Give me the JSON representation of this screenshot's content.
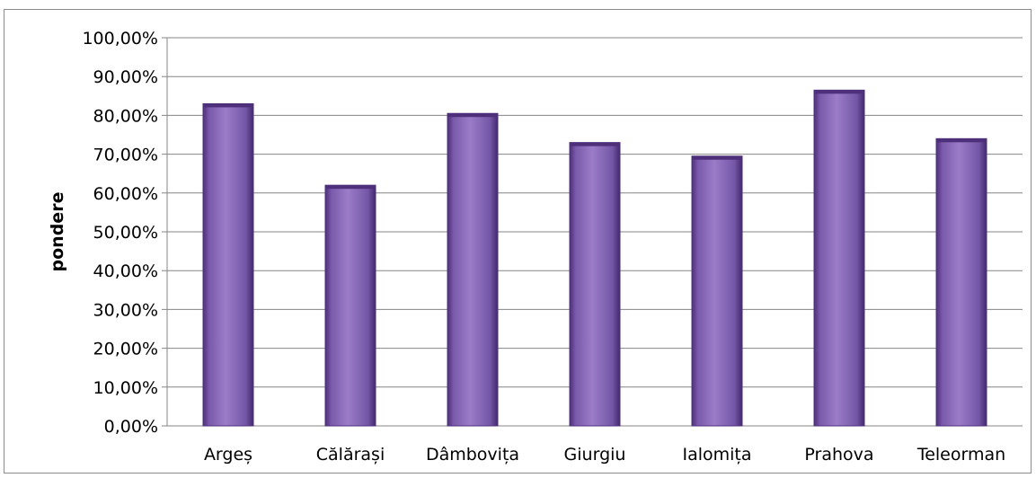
{
  "chart_data": {
    "type": "bar",
    "categories": [
      "Argeș",
      "Călărași",
      "Dâmbovița",
      "Giurgiu",
      "Ialomița",
      "Prahova",
      "Teleorman"
    ],
    "values": [
      83.0,
      62.0,
      80.5,
      73.0,
      69.5,
      86.5,
      74.0
    ],
    "ylabel": "pondere",
    "xlabel": "",
    "ylim": [
      0,
      100
    ],
    "yticks": [
      "0,00%",
      "10,00%",
      "20,00%",
      "30,00%",
      "40,00%",
      "50,00%",
      "60,00%",
      "70,00%",
      "80,00%",
      "90,00%",
      "100,00%"
    ],
    "grid": true,
    "legend": "none",
    "colors": {
      "bar": "#7f5fb0",
      "bar_light": "#9a7cc8",
      "bar_dark": "#4e2f7a",
      "gridline": "#868686"
    }
  }
}
